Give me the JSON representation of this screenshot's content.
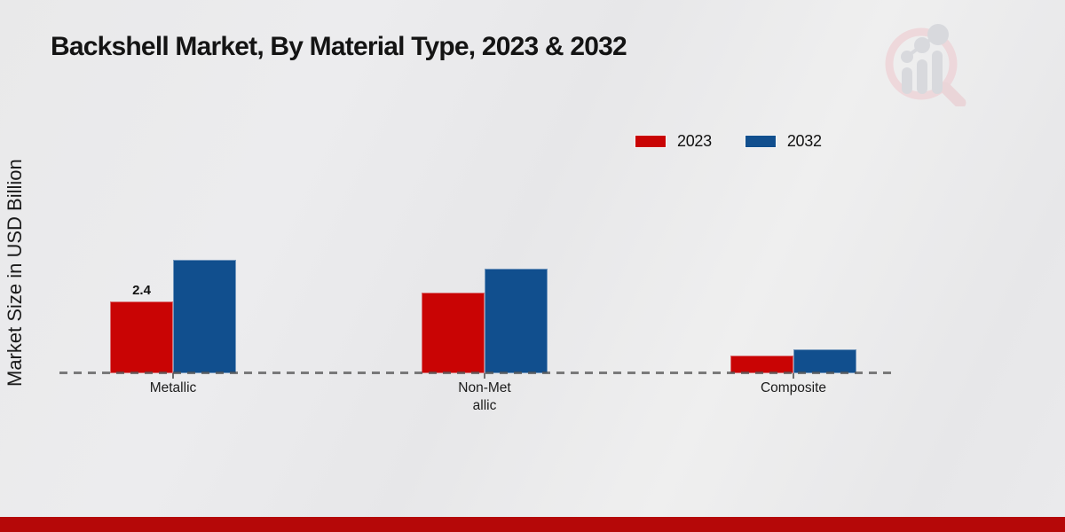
{
  "header": {
    "title": "Backshell Market, By Material Type, 2023 & 2032"
  },
  "axes": {
    "y_label": "Market Size in USD Billion"
  },
  "legend": {
    "items": [
      {
        "label": "2023",
        "color": "#c90404"
      },
      {
        "label": "2032",
        "color": "#114f8e"
      }
    ]
  },
  "chart_data": {
    "type": "bar",
    "title": "Backshell Market, By Material Type, 2023 & 2032",
    "ylabel": "Market Size in USD Billion",
    "categories": [
      "Metallic",
      "Non-Metallic",
      "Composite"
    ],
    "category_display_lines": [
      [
        "Metallic"
      ],
      [
        "Non-Met",
        "allic"
      ],
      [
        "Composite"
      ]
    ],
    "series": [
      {
        "name": "2023",
        "color": "#c90404",
        "values": [
          2.4,
          2.7,
          0.6
        ]
      },
      {
        "name": "2032",
        "color": "#114f8e",
        "values": [
          3.8,
          3.5,
          0.8
        ]
      }
    ],
    "data_labels": [
      {
        "series_index": 0,
        "category_index": 0,
        "text": "2.4"
      }
    ],
    "ylim": [
      0,
      4.8
    ],
    "grid": false,
    "legend_position": "top-right",
    "baseline_style": "dashed"
  },
  "footer": {
    "accent_color": "#b50808"
  },
  "watermark_colors": {
    "glass_pink": "#eed3d7",
    "chart_grey": "#d3d5da"
  }
}
